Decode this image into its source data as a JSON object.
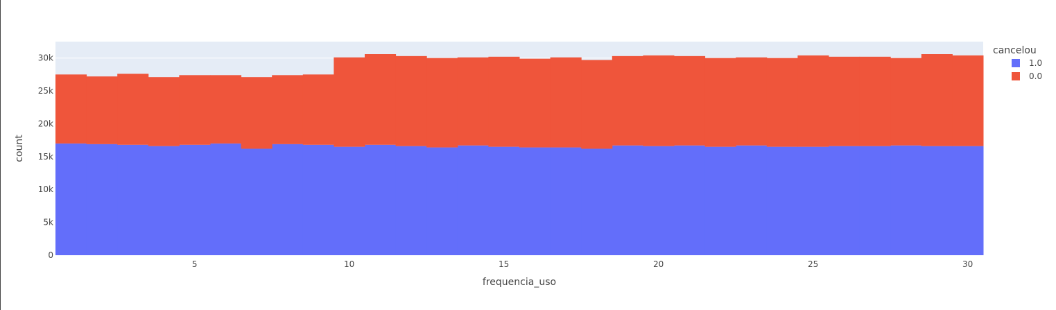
{
  "chart_data": {
    "type": "bar",
    "barmode": "stack",
    "xlabel": "frequencia_uso",
    "ylabel": "count",
    "x": [
      1,
      2,
      3,
      4,
      5,
      6,
      7,
      8,
      9,
      10,
      11,
      12,
      13,
      14,
      15,
      16,
      17,
      18,
      19,
      20,
      21,
      22,
      23,
      24,
      25,
      26,
      27,
      28,
      29,
      30
    ],
    "xlim": [
      0.5,
      30.5
    ],
    "ylim": [
      0,
      32500
    ],
    "xticks": [
      5,
      10,
      15,
      20,
      25,
      30
    ],
    "xtick_labels": [
      "5",
      "10",
      "15",
      "20",
      "25",
      "30"
    ],
    "yticks": [
      0,
      5000,
      10000,
      15000,
      20000,
      25000,
      30000
    ],
    "ytick_labels": [
      "0",
      "5k",
      "10k",
      "15k",
      "20k",
      "25k",
      "30k"
    ],
    "grid": true,
    "legend": {
      "title": "cancelou",
      "placement": "top-right"
    },
    "series": [
      {
        "name": "1.0",
        "color": "#636efa",
        "values": [
          17000,
          16900,
          16800,
          16600,
          16800,
          17000,
          16200,
          16900,
          16800,
          16500,
          16800,
          16600,
          16400,
          16700,
          16500,
          16400,
          16400,
          16200,
          16700,
          16600,
          16700,
          16500,
          16700,
          16500,
          16500,
          16600,
          16600,
          16700,
          16600,
          16600
        ]
      },
      {
        "name": "0.0",
        "color": "#ef553b",
        "values": [
          10500,
          10300,
          10800,
          10500,
          10600,
          10400,
          10900,
          10500,
          10700,
          13600,
          13800,
          13700,
          13600,
          13400,
          13700,
          13500,
          13700,
          13500,
          13600,
          13800,
          13600,
          13500,
          13400,
          13500,
          13900,
          13600,
          13600,
          13300,
          14000,
          13800
        ]
      }
    ]
  }
}
